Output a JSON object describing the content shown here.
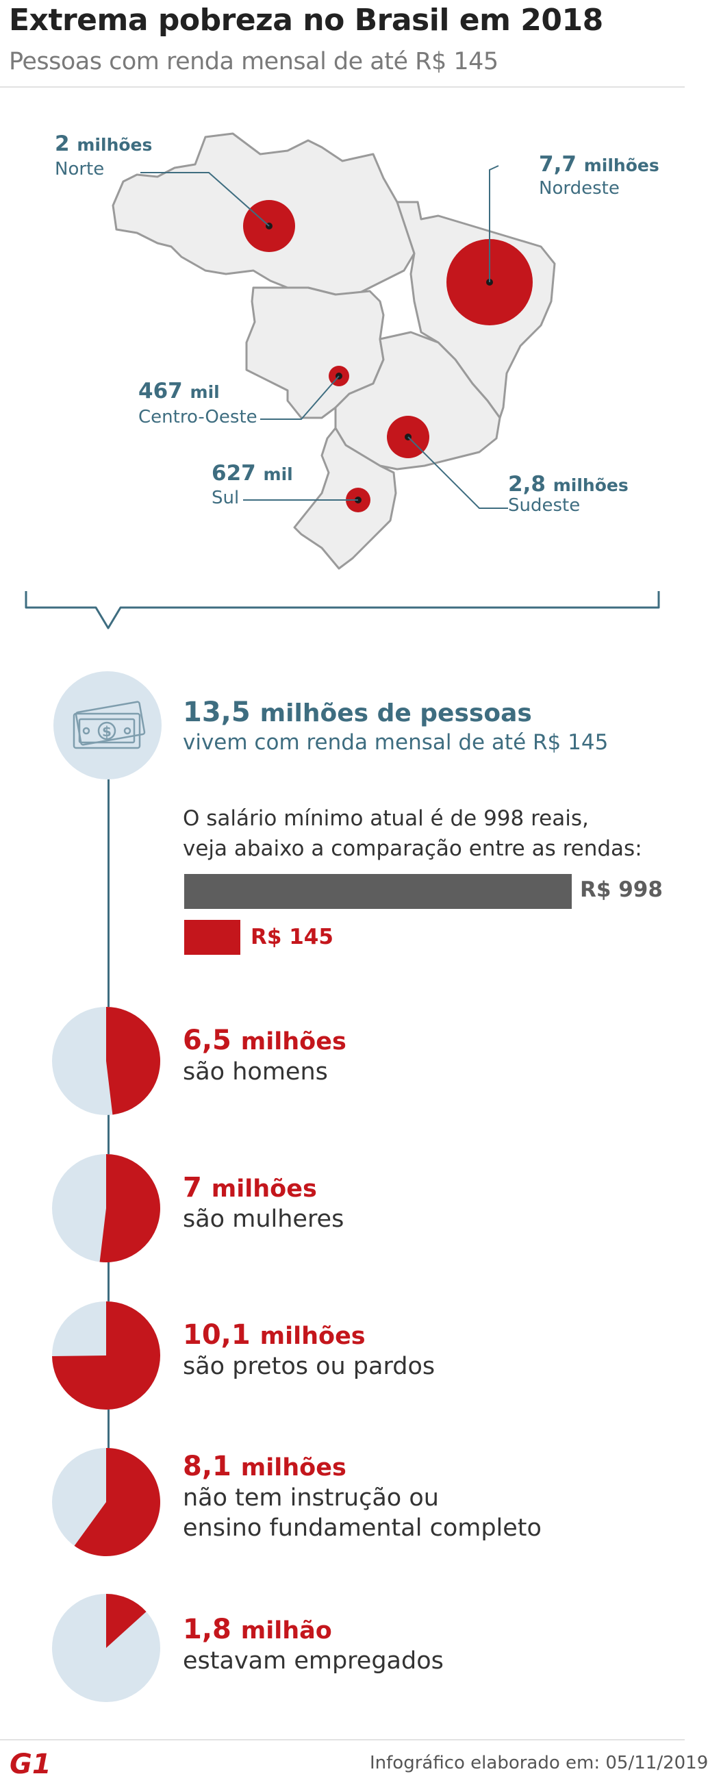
{
  "header": {
    "title": "Extrema pobreza no Brasil em 2018",
    "subtitle": "Pessoas com renda mensal de até R$ 145"
  },
  "colors": {
    "accent_red": "#c4161c",
    "accent_blue": "#3e6d80",
    "gray_bar": "#5e5e5e",
    "pie_background": "#d9e5ee",
    "map_fill": "#eeeeee"
  },
  "regions": [
    {
      "value": "2",
      "unit": "milhões",
      "name": "Norte",
      "share": 0.15
    },
    {
      "value": "7,7",
      "unit": "milhões",
      "name": "Nordeste",
      "share": 0.57
    },
    {
      "value": "467",
      "unit": "mil",
      "name": "Centro-Oeste",
      "share": 0.035
    },
    {
      "value": "2,8",
      "unit": "milhões",
      "name": "Sudeste",
      "share": 0.21
    },
    {
      "value": "627",
      "unit": "mil",
      "name": "Sul",
      "share": 0.046
    }
  ],
  "total": {
    "value": "13,5",
    "unit": "milhões de pessoas",
    "description": "vivem com renda mensal de até R$ 145",
    "icon": "money-bills-icon"
  },
  "comparison": {
    "text_line1": "O salário mínimo atual é de 998 reais,",
    "text_line2": "veja abaixo a comparação entre as rendas:",
    "minimum_label": "R$ 998",
    "minimum_value": 998,
    "poverty_label": "R$ 145",
    "poverty_value": 145
  },
  "stats": [
    {
      "value": "6,5",
      "unit": "milhões",
      "desc_line1": "são homens",
      "desc_line2": "",
      "fraction": 0.481
    },
    {
      "value": "7",
      "unit": "milhões",
      "desc_line1": "são mulheres",
      "desc_line2": "",
      "fraction": 0.519
    },
    {
      "value": "10,1",
      "unit": "milhões",
      "desc_line1": "são pretos ou pardos",
      "desc_line2": "",
      "fraction": 0.748
    },
    {
      "value": "8,1",
      "unit": "milhões",
      "desc_line1": "não tem instrução ou",
      "desc_line2": "ensino fundamental completo",
      "fraction": 0.6
    },
    {
      "value": "1,8",
      "unit": "milhão",
      "desc_line1": "estavam empregados",
      "desc_line2": "",
      "fraction": 0.133
    }
  ],
  "footer": {
    "logo": "G1",
    "credit": "Infográfico elaborado em: 05/11/2019"
  }
}
